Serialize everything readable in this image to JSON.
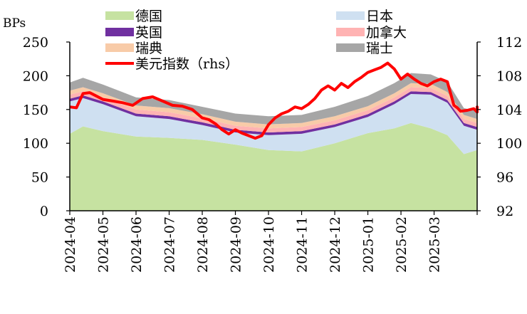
{
  "chart_data": {
    "type": "area",
    "title": "",
    "ylabel": "BPs",
    "y2label": "",
    "ylim": [
      0,
      250
    ],
    "y_ticks": [
      0,
      50,
      100,
      150,
      200,
      250
    ],
    "y2lim": [
      92,
      112
    ],
    "y2_ticks": [
      92,
      96,
      100,
      104,
      108,
      112
    ],
    "x_ticks": [
      "2024-04",
      "2024-05",
      "2024-06",
      "2024-07",
      "2024-08",
      "2024-09",
      "2024-10",
      "2024-11",
      "2024-12",
      "2025-01",
      "2025-02",
      "2025-03"
    ],
    "stacked": true,
    "legend_position": "top",
    "series": [
      {
        "name": "德国",
        "color": "#c6e2a1",
        "values": [
          114,
          125,
          118,
          110,
          108,
          105,
          98,
          90,
          88,
          100,
          115,
          122,
          130,
          122,
          112,
          84,
          90
        ]
      },
      {
        "name": "日本",
        "color": "#cfe0f1",
        "values": [
          48,
          42,
          40,
          30,
          28,
          22,
          18,
          22,
          26,
          24,
          24,
          36,
          43,
          50,
          48,
          42,
          30
        ]
      },
      {
        "name": "英国",
        "color": "#7030a0",
        "values": [
          4,
          4,
          4,
          4,
          4,
          4,
          4,
          4,
          4,
          4,
          4,
          4,
          4,
          4,
          4,
          4,
          4
        ]
      },
      {
        "name": "加拿大",
        "color": "#ffb3b3",
        "values": [
          6,
          6,
          6,
          6,
          6,
          6,
          6,
          6,
          6,
          6,
          6,
          6,
          6,
          6,
          6,
          6,
          6
        ]
      },
      {
        "name": "瑞典",
        "color": "#f8cba8",
        "values": [
          6,
          6,
          6,
          6,
          6,
          6,
          6,
          6,
          6,
          6,
          6,
          6,
          6,
          6,
          6,
          6,
          6
        ]
      },
      {
        "name": "瑞士",
        "color": "#a6a6a6",
        "values": [
          12,
          14,
          13,
          12,
          12,
          11,
          12,
          12,
          12,
          14,
          15,
          15,
          15,
          14,
          15,
          10,
          12
        ]
      }
    ],
    "x_positions": [
      0,
      0.4,
      1.0,
      2.0,
      3.0,
      4.0,
      5.0,
      6.0,
      7.0,
      8.0,
      9.0,
      9.8,
      10.3,
      10.9,
      11.4,
      11.9,
      12.9
    ],
    "line_series": {
      "name": "美元指数（rhs）",
      "color": "#ff0000",
      "axis": "right",
      "x": [
        0,
        0.2,
        0.4,
        0.6,
        0.8,
        1.0,
        1.3,
        1.6,
        1.9,
        2.2,
        2.5,
        2.8,
        3.1,
        3.4,
        3.7,
        4.0,
        4.2,
        4.4,
        4.6,
        4.8,
        5.0,
        5.2,
        5.4,
        5.6,
        5.8,
        6.0,
        6.2,
        6.4,
        6.6,
        6.8,
        7.0,
        7.2,
        7.4,
        7.6,
        7.8,
        8.0,
        8.2,
        8.4,
        8.6,
        8.8,
        9.0,
        9.2,
        9.4,
        9.6,
        9.8,
        10.0,
        10.2,
        10.4,
        10.6,
        10.8,
        11.0,
        11.2,
        11.4,
        11.6,
        11.7,
        11.8,
        12.0,
        12.2,
        12.4,
        12.6,
        12.9
      ],
      "values": [
        104.3,
        104.2,
        105.9,
        106.0,
        105.6,
        105.2,
        105.0,
        104.8,
        104.5,
        105.3,
        105.5,
        105.0,
        104.5,
        104.4,
        104.0,
        103.0,
        102.8,
        102.3,
        101.6,
        101.1,
        101.6,
        101.2,
        100.9,
        100.6,
        100.9,
        102.2,
        103.0,
        103.5,
        103.8,
        104.3,
        104.1,
        104.6,
        105.3,
        106.3,
        106.8,
        106.3,
        107.1,
        106.6,
        107.3,
        107.8,
        108.4,
        108.7,
        109.0,
        109.5,
        108.8,
        107.6,
        108.2,
        107.6,
        107.1,
        106.8,
        107.3,
        107.6,
        107.3,
        104.5,
        104.2,
        103.8,
        103.9,
        104.1,
        103.7,
        104.3,
        103.9
      ]
    }
  }
}
